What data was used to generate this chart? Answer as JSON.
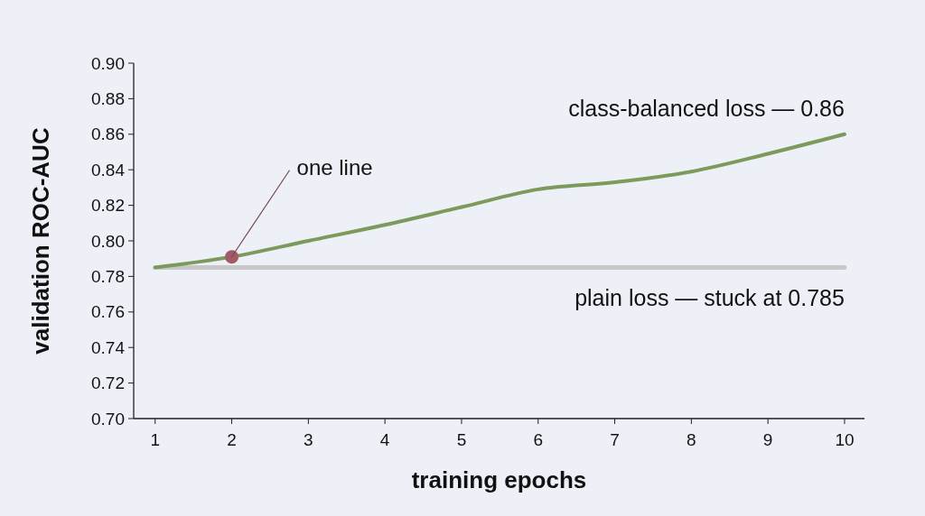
{
  "chart_data": {
    "type": "line",
    "xlabel": "training epochs",
    "ylabel": "validation ROC-AUC",
    "x": [
      1,
      2,
      3,
      4,
      5,
      6,
      7,
      8,
      9,
      10
    ],
    "xlim": [
      0.72,
      10.26
    ],
    "xticks": [
      1,
      2,
      3,
      4,
      5,
      6,
      7,
      8,
      9,
      10
    ],
    "ylim": [
      0.7,
      0.9
    ],
    "yticks": [
      {
        "value": 0.7,
        "label": "0.70"
      },
      0.72,
      0.74,
      0.76,
      0.78,
      {
        "value": 0.8,
        "label": "0.80"
      },
      0.82,
      0.84,
      0.86,
      0.88,
      {
        "value": 0.9,
        "label": "0.90"
      }
    ],
    "grid": false,
    "marker": "none",
    "line_style": "solid",
    "series": [
      {
        "name": "plain loss — stuck at 0.785",
        "color": "#c8c8c8",
        "values": [
          0.785,
          0.785,
          0.785,
          0.785,
          0.785,
          0.785,
          0.785,
          0.785,
          0.785,
          0.785
        ]
      },
      {
        "name": "class-balanced loss — 0.86",
        "color": "#7b9a5b",
        "values": [
          0.785,
          0.791,
          0.8,
          0.809,
          0.819,
          0.829,
          0.833,
          0.839,
          0.849,
          0.86
        ]
      },
      {
        "type": "scatter",
        "color": "#a25968",
        "x": [
          2
        ],
        "values": [
          0.791
        ],
        "marker": "circle"
      }
    ],
    "annotations": [
      {
        "text": "one line",
        "x": 2,
        "y": 0.791
      }
    ]
  }
}
